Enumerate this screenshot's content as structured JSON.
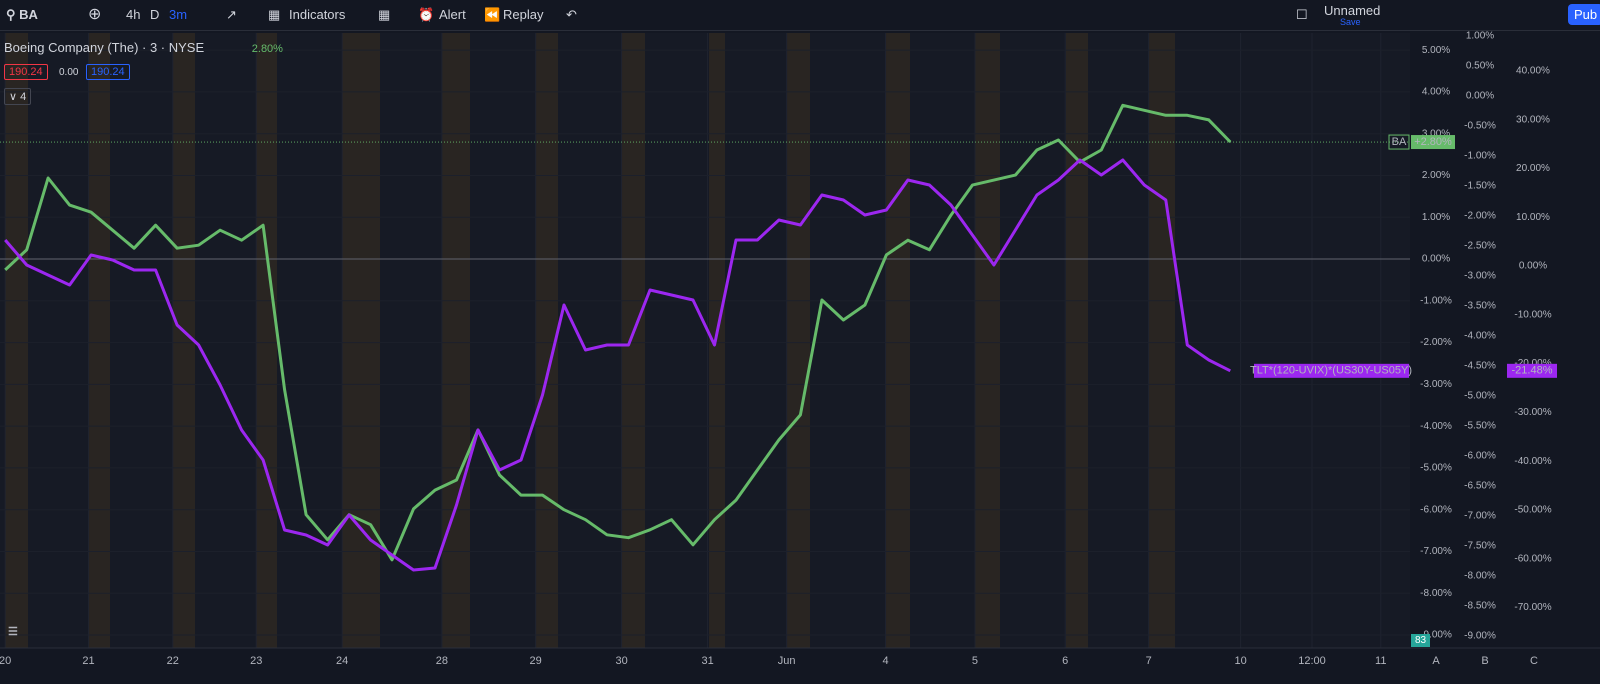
{
  "toolbar": {
    "symbol": "BA",
    "intervals": [
      "4h",
      "D",
      "3m"
    ],
    "indicators": "Indicators",
    "alert": "Alert",
    "replay": "Replay",
    "layout_name": "Unnamed",
    "save": "Save",
    "publish": "Pub"
  },
  "legend": {
    "title": "Boeing Company (The) · 3 · NYSE",
    "change": "2.80%",
    "bid": "190.24",
    "spread": "0.00",
    "ask": "190.24",
    "collapsed_count": "4"
  },
  "volume_badge": "83",
  "scale_buttons": [
    "A",
    "B",
    "C"
  ],
  "chart_data": {
    "type": "line",
    "x": [
      0,
      0.25,
      0.5,
      0.75,
      1,
      1.25,
      1.5,
      1.75,
      2,
      2.25,
      2.5,
      2.75,
      3,
      3.25,
      3.5,
      3.75,
      4,
      4.25,
      4.5,
      4.75,
      5,
      5.25,
      5.5,
      5.75,
      6,
      6.25,
      6.5,
      6.75,
      7,
      7.25,
      7.5,
      7.75,
      8,
      8.25,
      8.5,
      8.75,
      9,
      9.25,
      9.5,
      9.75,
      10,
      10.25,
      10.5,
      10.75,
      11,
      11.25,
      11.5,
      11.75,
      12,
      12.25,
      12.5,
      12.75,
      13,
      13.25,
      13.5,
      13.75,
      14,
      14.25
    ],
    "xlim": [
      -0.06,
      16.34
    ],
    "xticks": [
      {
        "value": 0,
        "label": "20"
      },
      {
        "value": 0.97,
        "label": "21"
      },
      {
        "value": 1.95,
        "label": "22"
      },
      {
        "value": 2.92,
        "label": "23"
      },
      {
        "value": 3.92,
        "label": "24"
      },
      {
        "value": 5.08,
        "label": "28"
      },
      {
        "value": 6.17,
        "label": "29"
      },
      {
        "value": 7.17,
        "label": "30"
      },
      {
        "value": 8.17,
        "label": "31"
      },
      {
        "value": 9.09,
        "label": "Jun"
      },
      {
        "value": 10.24,
        "label": "4"
      },
      {
        "value": 11.28,
        "label": "5"
      },
      {
        "value": 12.33,
        "label": "6"
      },
      {
        "value": 13.3,
        "label": "7"
      },
      {
        "value": 14.37,
        "label": "10"
      },
      {
        "value": 15.2,
        "label": "12:00"
      },
      {
        "value": 16.0,
        "label": "11"
      }
    ],
    "ylim": [
      -9.31,
      5.41
    ],
    "yticks": [
      {
        "value": 5,
        "label": "5.00%"
      },
      {
        "value": 4,
        "label": "4.00%"
      },
      {
        "value": 3,
        "label": "3.00%"
      },
      {
        "value": 2,
        "label": "2.00%"
      },
      {
        "value": 1,
        "label": "1.00%"
      },
      {
        "value": 0,
        "label": "0.00%"
      },
      {
        "value": -1,
        "label": "-1.00%"
      },
      {
        "value": -2,
        "label": "-2.00%"
      },
      {
        "value": -3,
        "label": "-3.00%"
      },
      {
        "value": -4,
        "label": "-4.00%"
      },
      {
        "value": -5,
        "label": "-5.00%"
      },
      {
        "value": -6,
        "label": "-6.00%"
      },
      {
        "value": -7,
        "label": "-7.00%"
      },
      {
        "value": -8,
        "label": "-8.00%"
      },
      {
        "value": -9,
        "label": "-9.00%"
      }
    ],
    "y2lim": [
      -9.2,
      1.05
    ],
    "y2ticks": [
      {
        "value": 1,
        "label": "1.00%"
      },
      {
        "value": 0.5,
        "label": "0.50%"
      },
      {
        "value": 0,
        "label": "0.00%"
      },
      {
        "value": -0.5,
        "label": "-0.50%"
      },
      {
        "value": -1,
        "label": "-1.00%"
      },
      {
        "value": -1.5,
        "label": "-1.50%"
      },
      {
        "value": -2,
        "label": "-2.00%"
      },
      {
        "value": -2.5,
        "label": "-2.50%"
      },
      {
        "value": -3,
        "label": "-3.00%"
      },
      {
        "value": -3.5,
        "label": "-3.50%"
      },
      {
        "value": -4,
        "label": "-4.00%"
      },
      {
        "value": -4.5,
        "label": "-4.50%"
      },
      {
        "value": -5,
        "label": "-5.00%"
      },
      {
        "value": -5.5,
        "label": "-5.50%"
      },
      {
        "value": -6,
        "label": "-6.00%"
      },
      {
        "value": -6.5,
        "label": "-6.50%"
      },
      {
        "value": -7,
        "label": "-7.00%"
      },
      {
        "value": -7.5,
        "label": "-7.50%"
      },
      {
        "value": -8,
        "label": "-8.00%"
      },
      {
        "value": -8.5,
        "label": "-8.50%"
      },
      {
        "value": -9,
        "label": "-9.00%"
      }
    ],
    "y3lim": [
      -78.28,
      47.75
    ],
    "y3ticks": [
      {
        "value": 40,
        "label": "40.00%"
      },
      {
        "value": 30,
        "label": "30.00%"
      },
      {
        "value": 20,
        "label": "20.00%"
      },
      {
        "value": 10,
        "label": "10.00%"
      },
      {
        "value": 0,
        "label": "0.00%"
      },
      {
        "value": -10,
        "label": "-10.00%"
      },
      {
        "value": -20,
        "label": "-20.00%"
      },
      {
        "value": -30,
        "label": "-30.00%"
      },
      {
        "value": -40,
        "label": "-40.00%"
      },
      {
        "value": -50,
        "label": "-50.00%"
      },
      {
        "value": -60,
        "label": "-60.00%"
      },
      {
        "value": -70,
        "label": "-70.00%"
      }
    ],
    "series": [
      {
        "name": "BA",
        "color": "#66bb6a",
        "axis": "y",
        "last_label": "+2.80%",
        "values": [
          -0.26,
          0.22,
          1.94,
          1.29,
          1.12,
          0.69,
          0.26,
          0.81,
          0.26,
          0.33,
          0.69,
          0.45,
          0.81,
          -3.13,
          -6.12,
          -6.72,
          -6.12,
          -6.36,
          -7.2,
          -5.98,
          -5.53,
          -5.29,
          -4.09,
          -5.17,
          -5.65,
          -5.65,
          -6.0,
          -6.24,
          -6.6,
          -6.67,
          -6.48,
          -6.24,
          -6.84,
          -6.24,
          -5.77,
          -5.05,
          -4.33,
          -3.73,
          -0.98,
          -1.46,
          -1.1,
          0.1,
          0.45,
          0.22,
          1.05,
          1.77,
          1.89,
          2.01,
          2.61,
          2.85,
          2.32,
          2.61,
          3.68,
          3.56,
          3.44,
          3.44,
          3.33,
          2.8
        ]
      },
      {
        "name": "TLT*(120-UVIX)*(US30Y-US05Y)",
        "color": "#9c27f0",
        "axis": "y3",
        "last_label": "-21.48%",
        "values": [
          5.33,
          0.2,
          -1.84,
          -3.89,
          2.25,
          1.23,
          -0.82,
          -0.82,
          -12.09,
          -16.19,
          -24.39,
          -33.61,
          -39.75,
          -54.1,
          -55.12,
          -57.17,
          -51.02,
          -56.15,
          -59.22,
          -62.3,
          -61.89,
          -48.98,
          -33.61,
          -41.8,
          -39.75,
          -26.43,
          -7.99,
          -17.21,
          -16.19,
          -16.19,
          -4.92,
          -5.94,
          -6.97,
          -16.19,
          5.33,
          5.33,
          9.43,
          8.4,
          14.55,
          13.52,
          10.45,
          11.48,
          17.62,
          16.6,
          12.5,
          6.35,
          0.2,
          7.38,
          14.55,
          17.62,
          21.72,
          18.65,
          21.72,
          16.6,
          13.52,
          -16.19,
          -19.26,
          -21.48
        ]
      }
    ]
  }
}
